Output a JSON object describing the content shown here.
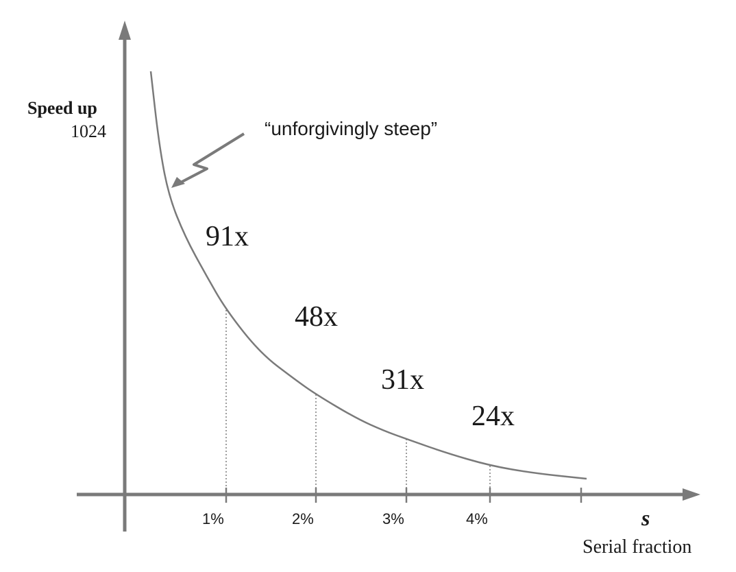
{
  "colors": {
    "axis": "#7a7a7a",
    "curve": "#7a7a7a",
    "text": "#1a1a1a"
  },
  "chart_data": {
    "type": "line",
    "ylabel": "Speed up",
    "y_top_label": "1024",
    "xlabel_symbol": "s",
    "xlabel": "Serial fraction",
    "x_ticks": [
      "1%",
      "2%",
      "3%",
      "4%"
    ],
    "annotation": "“unforgivingly steep”",
    "series": [
      {
        "x": [
          1,
          2,
          3,
          4
        ],
        "values": [
          91,
          48,
          31,
          24
        ]
      }
    ],
    "value_labels": [
      "91x",
      "48x",
      "31x",
      "24x"
    ]
  }
}
